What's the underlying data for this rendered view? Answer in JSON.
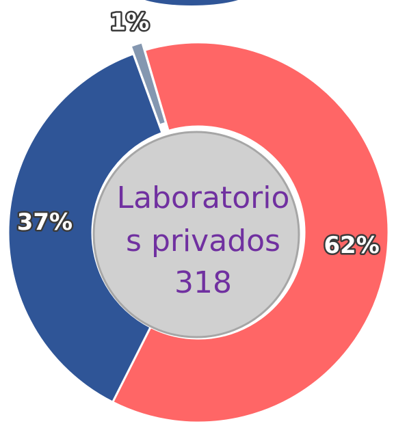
{
  "chart_data": {
    "type": "donut",
    "values": [
      62,
      37,
      1
    ],
    "value_labels": [
      "62%",
      "37%",
      "1%"
    ],
    "colors": [
      "#ff6666",
      "#2f5597",
      "#8497b0"
    ],
    "exploded": [
      false,
      false,
      true
    ],
    "center_text": [
      "Laboratorio",
      "s privados"
    ],
    "center_value": 318
  }
}
